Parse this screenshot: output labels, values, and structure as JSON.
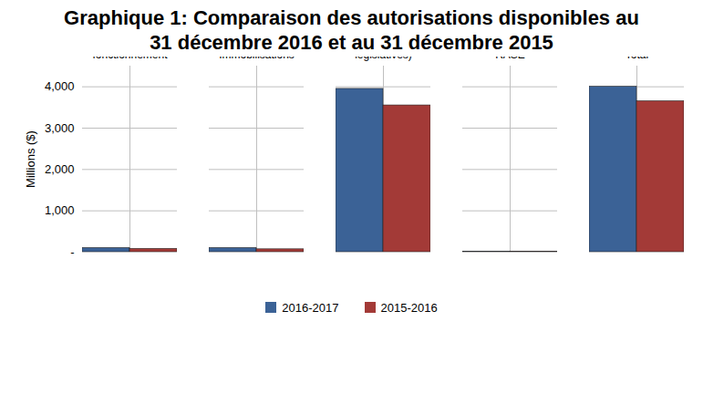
{
  "chart_data": {
    "type": "bar",
    "title": "Graphique 1: Comparaison des autorisations disponibles au 31 décembre 2016 et au 31 décembre 2015",
    "y_label": "Millions ($)",
    "categories": [
      "Dépenses de fonctionnement",
      "Immobilisations",
      "Contributions (Votées & législatives)",
      "Contributions au RASE",
      "Total"
    ],
    "series": [
      {
        "name": "2016-2017",
        "color": "#3b6296",
        "values": [
          100,
          100,
          3950,
          10,
          4000
        ]
      },
      {
        "name": "2015-2016",
        "color": "#a33a37",
        "values": [
          80,
          70,
          3550,
          10,
          3650
        ]
      }
    ],
    "ylim": [
      0,
      4500
    ],
    "yticks": [
      {
        "value": 0,
        "label": "-"
      },
      {
        "value": 1000,
        "label": "1,000"
      },
      {
        "value": 2000,
        "label": "2,000"
      },
      {
        "value": 3000,
        "label": "3,000"
      },
      {
        "value": 4000,
        "label": "4,000"
      }
    ],
    "grid": true,
    "legend": "bottom"
  }
}
